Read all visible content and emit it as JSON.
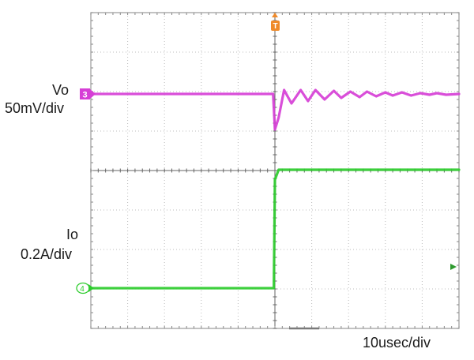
{
  "chart_data": {
    "type": "line",
    "title": "",
    "xlabel": "",
    "ylabel": "",
    "time_scale": "10usec/div",
    "x_unit": "usec",
    "xlim": [
      -50,
      50
    ],
    "grid": true,
    "grid_divisions": {
      "horizontal": 10,
      "vertical": 8
    },
    "trigger_marker": "T",
    "series": [
      {
        "name": "Vo",
        "channel_marker": "3",
        "scale": "50mV/div",
        "color": "#d63fd6",
        "unit": "mV",
        "x": [
          -50,
          -0.5,
          0,
          1,
          2.5,
          4.5,
          7,
          9,
          11,
          13.5,
          16,
          18,
          20.5,
          23,
          25,
          27.5,
          30,
          32,
          34.5,
          37,
          39.5,
          42,
          44,
          46.5,
          50
        ],
        "y": [
          0,
          0,
          -45,
          -30,
          5,
          -12,
          5,
          -9,
          5,
          -7,
          4,
          -5,
          3,
          -4,
          3,
          -3,
          2,
          -2,
          2,
          -2,
          1,
          -1,
          1,
          -1,
          0
        ]
      },
      {
        "name": "Io",
        "channel_marker": "4",
        "scale": "0.2A/div",
        "color": "#2ecc2e",
        "unit": "A",
        "x": [
          -50,
          -0.3,
          0,
          1,
          50
        ],
        "y": [
          0,
          0,
          0.55,
          0.6,
          0.6
        ]
      }
    ]
  }
}
